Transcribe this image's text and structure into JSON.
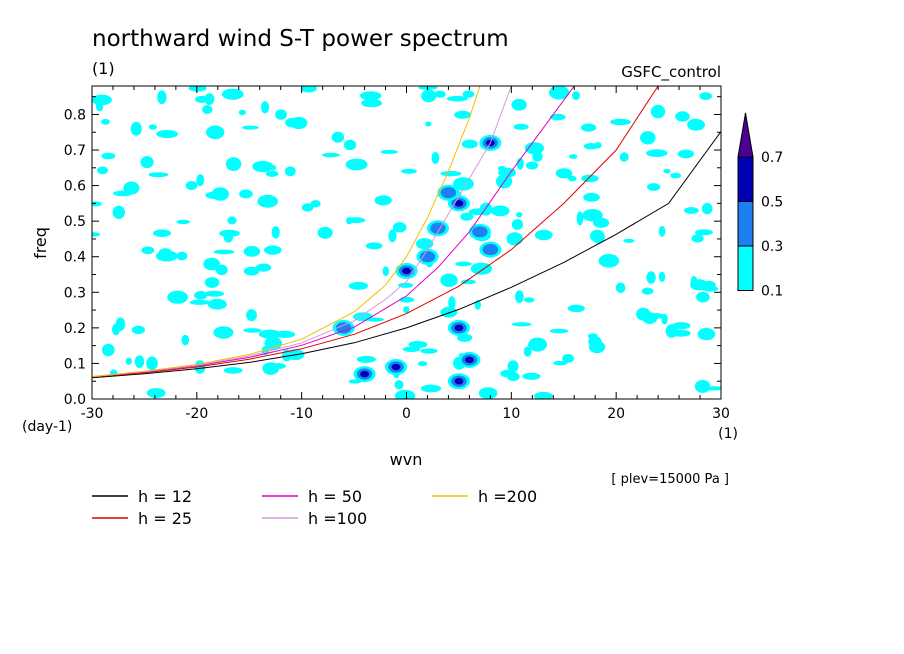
{
  "chart_data": {
    "type": "line",
    "title": "northward wind S-T power spectrum",
    "title_unit": "(1)",
    "run_label": "GSFC_control",
    "level_label": "[ plev=15000 Pa ]",
    "xlabel": "wvn",
    "x_unit": "(1)",
    "ylabel": "freq",
    "y_unit": "(day-1)",
    "xlim": [
      -30,
      30
    ],
    "ylim": [
      0,
      0.88
    ],
    "xticks": [
      -30,
      -20,
      -10,
      0,
      10,
      20,
      30
    ],
    "xtick_labels": [
      "-30",
      "-20",
      "-10",
      "0",
      "10",
      "20",
      "30"
    ],
    "yticks": [
      0,
      0.1,
      0.2,
      0.3,
      0.4,
      0.5,
      0.6,
      0.7,
      0.8
    ],
    "ytick_labels": [
      "0.0",
      "0.1",
      "0.2",
      "0.3",
      "0.4",
      "0.5",
      "0.6",
      "0.7",
      "0.8"
    ],
    "colorbar": {
      "levels": [
        0.1,
        0.3,
        0.5,
        0.7
      ],
      "labels": [
        "0.1",
        "0.3",
        "0.5",
        "0.7"
      ],
      "colors": [
        "#00ffff",
        "#1e7ff0",
        "#0000b4",
        "#4b0096"
      ]
    },
    "series": [
      {
        "name": "h = 12",
        "color": "#000000",
        "x": [
          -30,
          -25,
          -20,
          -15,
          -10,
          -5,
          0,
          5,
          10,
          15,
          20,
          25,
          30
        ],
        "y": [
          0.06,
          0.071,
          0.085,
          0.103,
          0.127,
          0.158,
          0.2,
          0.252,
          0.314,
          0.384,
          0.463,
          0.55,
          0.752
        ]
      },
      {
        "name": "h = 25",
        "color": "#e00000",
        "x": [
          -30,
          -25,
          -20,
          -15,
          -10,
          -5,
          0,
          5,
          10,
          15,
          20,
          24
        ],
        "y": [
          0.062,
          0.074,
          0.09,
          0.112,
          0.141,
          0.182,
          0.24,
          0.317,
          0.42,
          0.55,
          0.7,
          0.88
        ]
      },
      {
        "name": "h = 50",
        "color": "#e000c0",
        "x": [
          -30,
          -25,
          -20,
          -15,
          -10,
          -5,
          0,
          3,
          6,
          10,
          13,
          16
        ],
        "y": [
          0.063,
          0.076,
          0.093,
          0.117,
          0.151,
          0.202,
          0.29,
          0.37,
          0.47,
          0.64,
          0.76,
          0.88
        ]
      },
      {
        "name": "h =100",
        "color": "#d59ae0",
        "x": [
          -30,
          -25,
          -20,
          -15,
          -10,
          -5,
          -2,
          0,
          2,
          4,
          6,
          8,
          10
        ],
        "y": [
          0.063,
          0.077,
          0.095,
          0.121,
          0.158,
          0.22,
          0.28,
          0.33,
          0.42,
          0.52,
          0.62,
          0.72,
          0.88
        ]
      },
      {
        "name": "h =200",
        "color": "#f0c000",
        "x": [
          -30,
          -25,
          -20,
          -15,
          -10,
          -5,
          -2,
          0,
          2,
          4,
          6,
          7
        ],
        "y": [
          0.063,
          0.078,
          0.097,
          0.125,
          0.168,
          0.245,
          0.32,
          0.4,
          0.51,
          0.64,
          0.79,
          0.88
        ]
      }
    ],
    "contour_blobs": [
      {
        "x": 5,
        "y": 0.05,
        "level": 0.7
      },
      {
        "x": 6,
        "y": 0.11,
        "level": 0.7
      },
      {
        "x": 5,
        "y": 0.2,
        "level": 0.7
      },
      {
        "x": -4,
        "y": 0.07,
        "level": 0.5
      },
      {
        "x": -1,
        "y": 0.09,
        "level": 0.5
      },
      {
        "x": 0,
        "y": 0.36,
        "level": 0.5
      },
      {
        "x": 5,
        "y": 0.55,
        "level": 0.5
      },
      {
        "x": 8,
        "y": 0.72,
        "level": 0.5
      },
      {
        "x": 3,
        "y": 0.48,
        "level": 0.3
      },
      {
        "x": 7,
        "y": 0.47,
        "level": 0.3
      },
      {
        "x": 8,
        "y": 0.42,
        "level": 0.3
      },
      {
        "x": 4,
        "y": 0.58,
        "level": 0.3
      },
      {
        "x": 2,
        "y": 0.4,
        "level": 0.3
      },
      {
        "x": -6,
        "y": 0.2,
        "level": 0.3
      }
    ],
    "legend": "bottom"
  }
}
